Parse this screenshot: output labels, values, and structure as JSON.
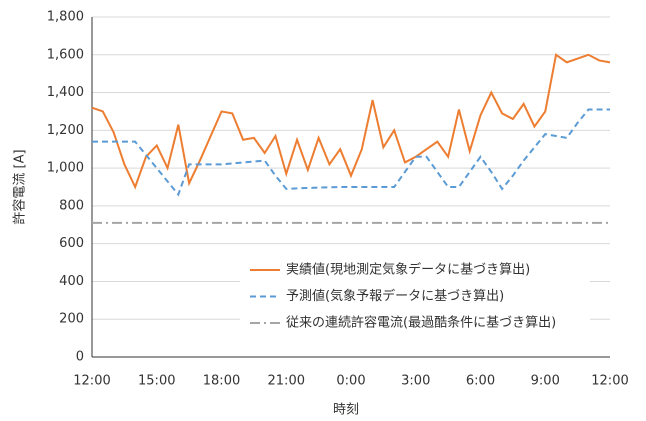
{
  "chart_data": {
    "type": "line",
    "xlabel": "時刻",
    "ylabel": "許容電流 [A]",
    "categories": [
      "12:00",
      null,
      null,
      null,
      null,
      null,
      "15:00",
      null,
      null,
      null,
      null,
      null,
      "18:00",
      null,
      null,
      null,
      null,
      null,
      "21:00",
      null,
      null,
      null,
      null,
      null,
      "0:00",
      null,
      null,
      null,
      null,
      null,
      "3:00",
      null,
      null,
      null,
      null,
      null,
      "6:00",
      null,
      null,
      null,
      null,
      null,
      "9:00",
      null,
      null,
      null,
      null,
      null,
      "12:00"
    ],
    "series": [
      {
        "name": "実績値(現地測定気象データに基づき算出)",
        "color": "#ed7d31",
        "dash": "none",
        "values": [
          1320,
          1300,
          1190,
          1020,
          900,
          1060,
          1120,
          1000,
          1230,
          920,
          1040,
          1170,
          1300,
          1290,
          1150,
          1160,
          1080,
          1170,
          970,
          1150,
          990,
          1160,
          1020,
          1100,
          960,
          1100,
          1360,
          1110,
          1200,
          1030,
          1060,
          1100,
          1140,
          1060,
          1310,
          1090,
          1280,
          1400,
          1290,
          1260,
          1340,
          1220,
          1300,
          1600,
          1560,
          1580,
          1600,
          1570,
          1560
        ]
      },
      {
        "name": "予測値(気象予報データに基づき算出)",
        "color": "#5b9bd5",
        "dash": "6,4",
        "values": [
          1140,
          1140,
          1140,
          1140,
          1140,
          1070,
          1000,
          930,
          860,
          1020,
          1020,
          1020,
          1020,
          1025,
          1030,
          1035,
          1040,
          960,
          890,
          893,
          895,
          897,
          898,
          900,
          900,
          900,
          900,
          900,
          900,
          980,
          1060,
          1060,
          980,
          900,
          900,
          980,
          1060,
          980,
          890,
          960,
          1040,
          1110,
          1180,
          1170,
          1160,
          1240,
          1310,
          1310,
          1310
        ]
      },
      {
        "name": "従来の連続許容電流(最過酷条件に基づき算出)",
        "color": "#a5a5a5",
        "dash": "10,4,2,4",
        "values": [
          710,
          710,
          710,
          710,
          710,
          710,
          710,
          710,
          710,
          710,
          710,
          710,
          710,
          710,
          710,
          710,
          710,
          710,
          710,
          710,
          710,
          710,
          710,
          710,
          710,
          710,
          710,
          710,
          710,
          710,
          710,
          710,
          710,
          710,
          710,
          710,
          710,
          710,
          710,
          710,
          710,
          710,
          710,
          710,
          710,
          710,
          710,
          710,
          710
        ]
      }
    ],
    "ylim": [
      0,
      1800
    ],
    "yticks": [
      0,
      200,
      400,
      600,
      800,
      {
        "value": 1000,
        "label": "1,000"
      },
      {
        "value": 1200,
        "label": "1,200"
      },
      {
        "value": 1400,
        "label": "1,400"
      },
      {
        "value": 1600,
        "label": "1,600"
      },
      {
        "value": 1800,
        "label": "1,800"
      }
    ],
    "grid": true,
    "legend": "bottom"
  }
}
